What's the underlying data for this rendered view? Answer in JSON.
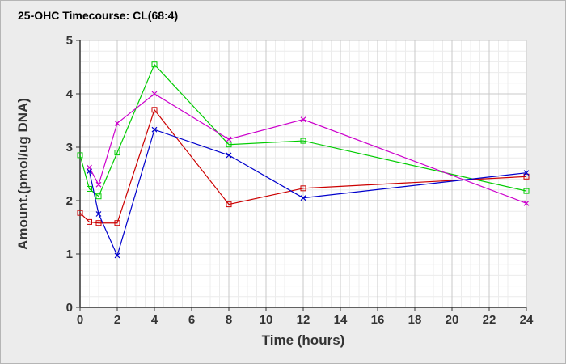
{
  "chart_data": {
    "type": "line",
    "title": "25-OHC Timecourse: CL(68:4)",
    "xlabel": "Time (hours)",
    "ylabel": "Amount.(pmol/ug DNA)",
    "xlim": [
      0,
      24
    ],
    "ylim": [
      0,
      5
    ],
    "xticks": [
      0,
      2,
      4,
      6,
      8,
      10,
      12,
      14,
      16,
      18,
      20,
      22,
      24
    ],
    "yticks": [
      0,
      1,
      2,
      3,
      4,
      5
    ],
    "grid": true,
    "legend": "none",
    "series": [
      {
        "color": "#00cc00",
        "marker": "square",
        "x": [
          0,
          0.5,
          1,
          2,
          4,
          8,
          12,
          24
        ],
        "y": [
          2.85,
          2.22,
          2.08,
          2.9,
          4.55,
          3.05,
          3.12,
          2.18
        ]
      },
      {
        "color": "#cc00cc",
        "marker": "cross",
        "x": [
          0.5,
          1,
          2,
          4,
          8,
          12,
          24
        ],
        "y": [
          2.62,
          2.3,
          3.45,
          4.0,
          3.15,
          3.52,
          1.95
        ]
      },
      {
        "color": "#cc0000",
        "marker": "square",
        "x": [
          0,
          0.5,
          1,
          2,
          4,
          8,
          12,
          24
        ],
        "y": [
          1.77,
          1.6,
          1.58,
          1.58,
          3.7,
          1.93,
          2.23,
          2.45
        ]
      },
      {
        "color": "#0000cc",
        "marker": "cross",
        "x": [
          0.5,
          1,
          2,
          4,
          8,
          12,
          24
        ],
        "y": [
          2.55,
          1.75,
          0.97,
          3.33,
          2.85,
          2.05,
          2.52
        ]
      }
    ]
  }
}
